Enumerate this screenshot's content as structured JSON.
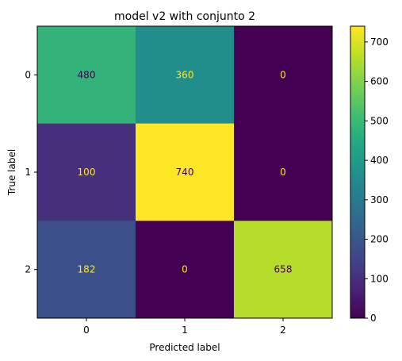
{
  "chart_data": {
    "type": "heatmap",
    "title": "model v2 with conjunto 2",
    "xlabel": "Predicted label",
    "ylabel": "True label",
    "x_tick_labels": [
      "0",
      "1",
      "2"
    ],
    "y_tick_labels": [
      "0",
      "1",
      "2"
    ],
    "matrix": [
      [
        480,
        360,
        0
      ],
      [
        100,
        740,
        0
      ],
      [
        182,
        0,
        658
      ]
    ],
    "colormap": "viridis",
    "colorbar": {
      "min": 0,
      "max": 740,
      "ticks": [
        0,
        100,
        200,
        300,
        400,
        500,
        600,
        700
      ]
    },
    "text_colors": {
      "dark": "#440154",
      "light": "#fde725"
    }
  }
}
